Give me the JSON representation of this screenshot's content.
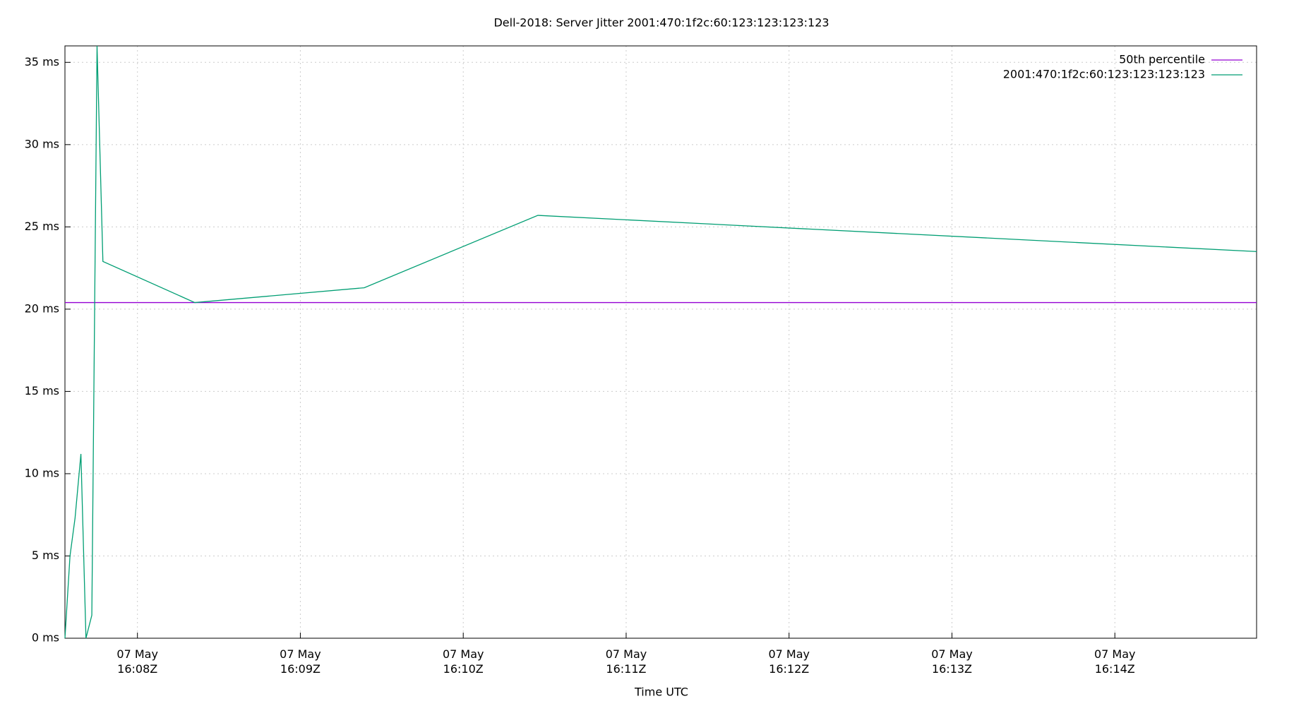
{
  "chart_data": {
    "type": "line",
    "title": "Dell-2018: Server Jitter 2001:470:1f2c:60:123:123:123:123",
    "x_label": "Time UTC",
    "x": [
      7.555,
      7.586,
      7.617,
      7.653,
      7.684,
      7.72,
      7.752,
      7.788,
      8.352,
      9.392,
      10.458,
      14.87
    ],
    "series": [
      {
        "name": "50th percentile",
        "color": "#9400d3",
        "value": 20.4
      },
      {
        "name": "2001:470:1f2c:60:123:123:123:123",
        "color": "#009e73",
        "values": [
          0,
          5.0,
          7.3,
          11.2,
          0,
          1.4,
          36.0,
          22.9,
          20.4,
          21.3,
          25.7,
          23.5
        ]
      }
    ],
    "xlim": [
      7.555,
      14.87
    ],
    "xticks": [
      {
        "value": 8,
        "label": "07 May\n16:08Z"
      },
      {
        "value": 9,
        "label": "07 May\n16:09Z"
      },
      {
        "value": 10,
        "label": "07 May\n16:10Z"
      },
      {
        "value": 11,
        "label": "07 May\n16:11Z"
      },
      {
        "value": 12,
        "label": "07 May\n16:12Z"
      },
      {
        "value": 13,
        "label": "07 May\n16:13Z"
      },
      {
        "value": 14,
        "label": "07 May\n16:14Z"
      }
    ],
    "ylim": [
      0,
      36
    ],
    "yticks": [
      {
        "value": 0,
        "label": "0 ms"
      },
      {
        "value": 5,
        "label": "5 ms"
      },
      {
        "value": 10,
        "label": "10 ms"
      },
      {
        "value": 15,
        "label": "15 ms"
      },
      {
        "value": 20,
        "label": "20 ms"
      },
      {
        "value": 25,
        "label": "25 ms"
      },
      {
        "value": 30,
        "label": "30 ms"
      },
      {
        "value": 35,
        "label": "35 ms"
      }
    ],
    "grid": true,
    "legend": "upper right"
  }
}
